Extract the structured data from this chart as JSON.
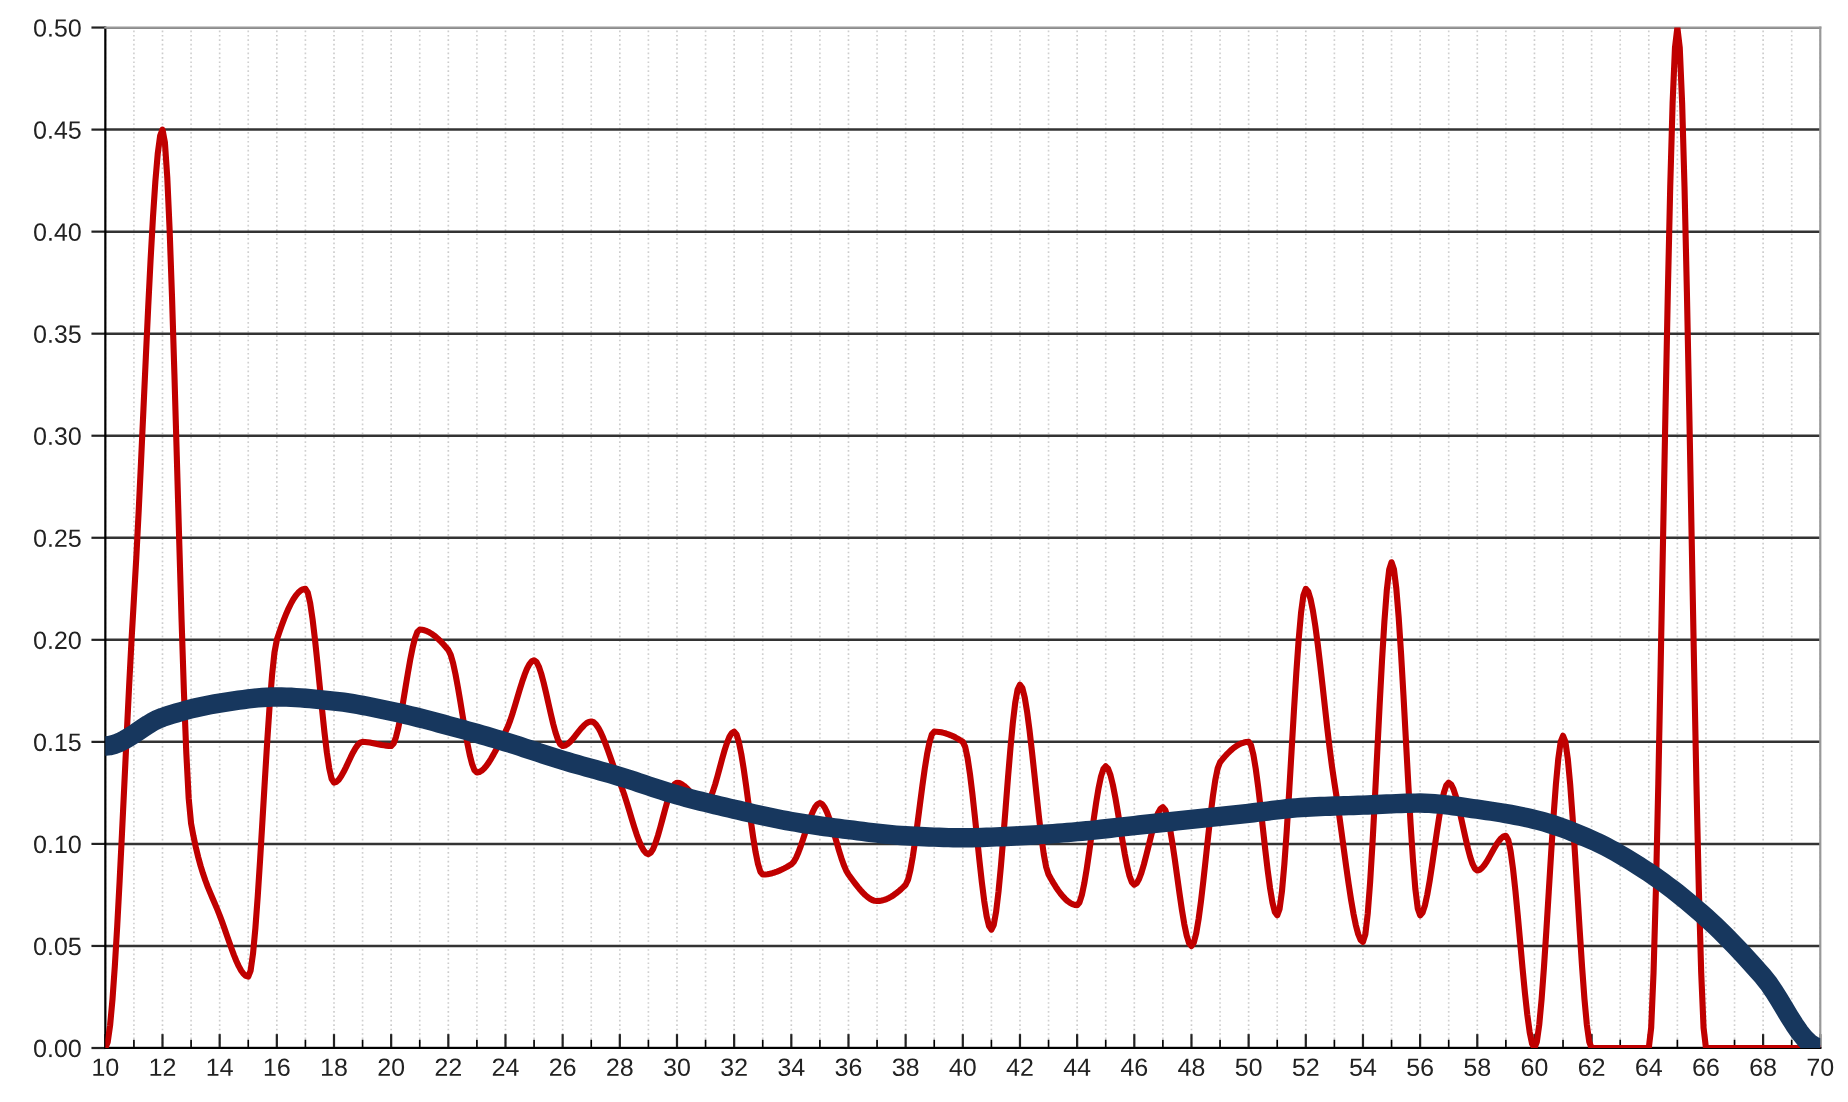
{
  "chart_data": {
    "type": "line",
    "xlim": [
      10,
      70
    ],
    "xticks": [
      10,
      12,
      14,
      16,
      18,
      20,
      22,
      24,
      26,
      28,
      30,
      32,
      34,
      36,
      38,
      40,
      42,
      44,
      46,
      48,
      50,
      52,
      54,
      56,
      58,
      60,
      62,
      64,
      66,
      68,
      70
    ],
    "ylim": [
      0,
      0.5
    ],
    "yticks": [
      {
        "value": 0,
        "label": "0.00"
      },
      {
        "value": 0.05,
        "label": "0.05"
      },
      {
        "value": 0.1,
        "label": "0.10"
      },
      {
        "value": 0.15,
        "label": "0.15"
      },
      {
        "value": 0.2,
        "label": "0.20"
      },
      {
        "value": 0.25,
        "label": "0.25"
      },
      {
        "value": 0.3,
        "label": "0.30"
      },
      {
        "value": 0.35,
        "label": "0.35"
      },
      {
        "value": 0.4,
        "label": "0.40"
      },
      {
        "value": 0.45,
        "label": "0.45"
      },
      {
        "value": 0.5,
        "label": "0.50"
      }
    ],
    "grid": true,
    "marker": "none",
    "line_style": "solid",
    "series": [
      {
        "color": "#c00000",
        "x": [
          10,
          11,
          12,
          13,
          14,
          15,
          16,
          17,
          18,
          19,
          20,
          21,
          22,
          23,
          24,
          25,
          26,
          27,
          28,
          29,
          30,
          31,
          32,
          33,
          34,
          35,
          36,
          37,
          38,
          39,
          40,
          41,
          42,
          43,
          44,
          45,
          46,
          47,
          48,
          49,
          50,
          51,
          52,
          53,
          54,
          55,
          56,
          57,
          58,
          59,
          60,
          61,
          62,
          63,
          64,
          65,
          66,
          67,
          68,
          69,
          70
        ],
        "values": [
          0,
          0.22,
          0.45,
          0.11,
          0.065,
          0.035,
          0.2,
          0.225,
          0.13,
          0.15,
          0.148,
          0.205,
          0.195,
          0.135,
          0.155,
          0.19,
          0.148,
          0.16,
          0.13,
          0.095,
          0.13,
          0.12,
          0.155,
          0.085,
          0.09,
          0.12,
          0.085,
          0.072,
          0.08,
          0.155,
          0.15,
          0.058,
          0.178,
          0.085,
          0.07,
          0.138,
          0.08,
          0.118,
          0.05,
          0.14,
          0.15,
          0.065,
          0.225,
          0.13,
          0.052,
          0.238,
          0.065,
          0.13,
          0.087,
          0.104,
          0,
          0.153,
          0,
          0,
          0,
          0.5,
          0,
          0,
          0,
          0,
          0
        ]
      },
      {
        "color": "#17375e",
        "x": [
          10,
          12,
          14,
          16,
          18,
          20,
          22,
          24,
          26,
          28,
          30,
          32,
          34,
          36,
          38,
          40,
          42,
          44,
          46,
          48,
          50,
          52,
          54,
          56,
          58,
          60,
          62,
          64,
          66,
          68,
          70
        ],
        "values": [
          0.148,
          0.162,
          0.169,
          0.172,
          0.17,
          0.165,
          0.158,
          0.15,
          0.141,
          0.133,
          0.124,
          0.117,
          0.111,
          0.107,
          0.104,
          0.103,
          0.104,
          0.106,
          0.109,
          0.112,
          0.115,
          0.118,
          0.119,
          0.12,
          0.117,
          0.112,
          0.102,
          0.086,
          0.064,
          0.035,
          0
        ]
      }
    ]
  }
}
